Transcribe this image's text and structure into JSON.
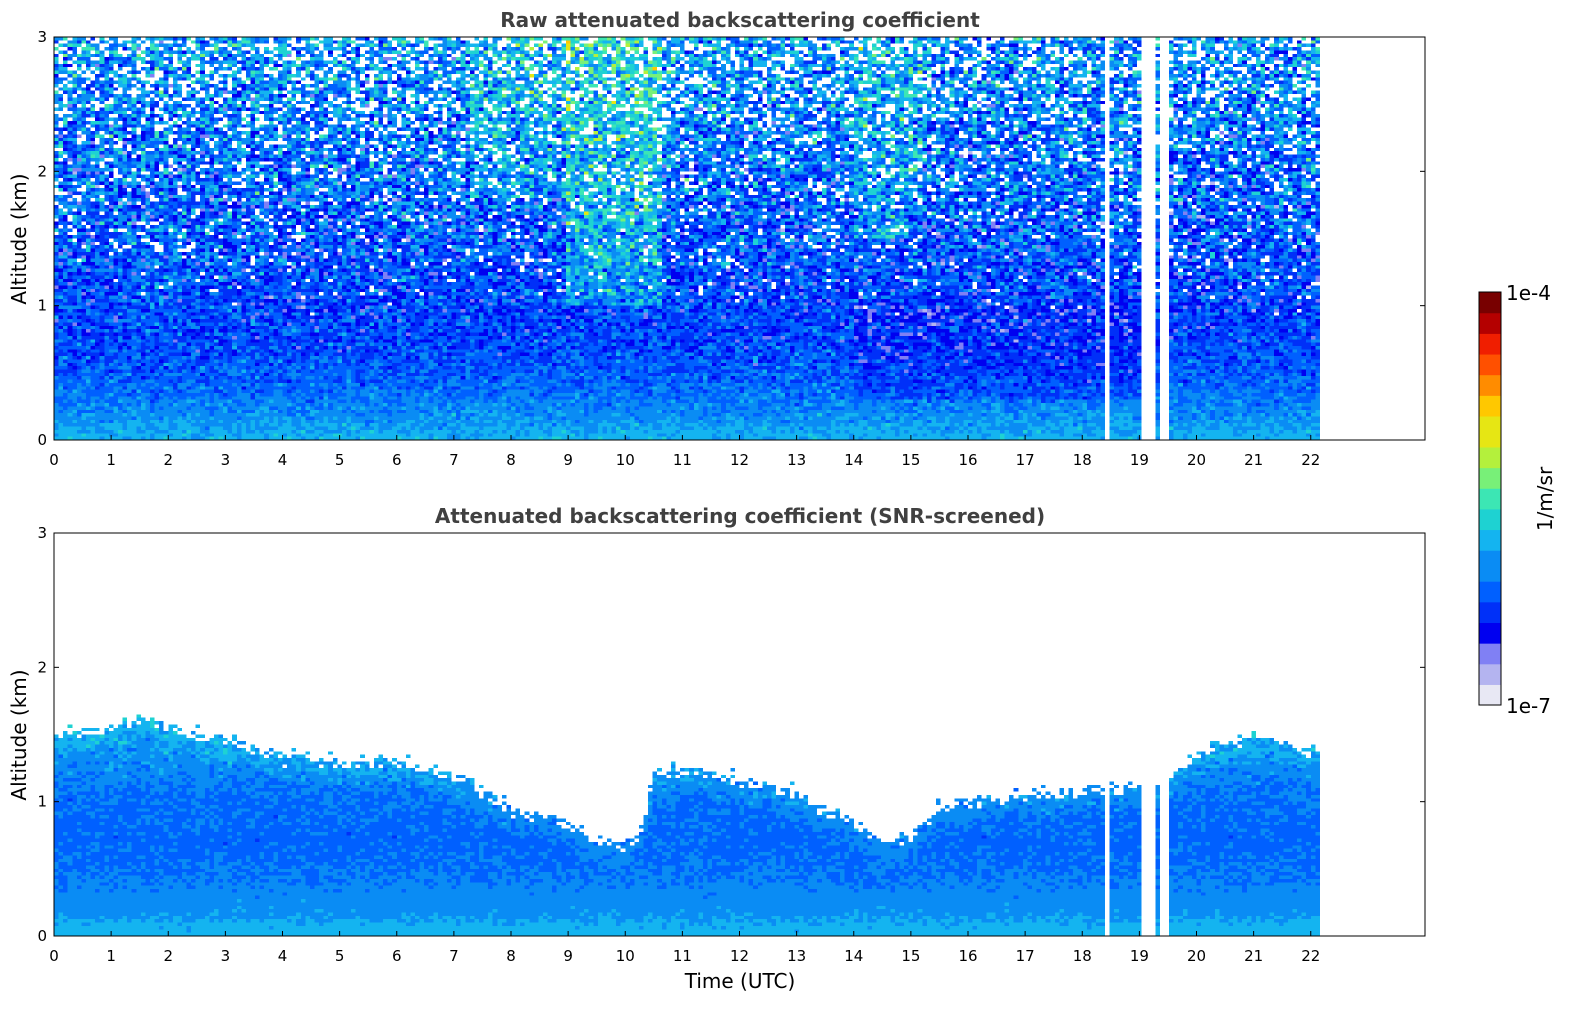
{
  "colors": {
    "background": "#ffffff",
    "axis": "#000000",
    "title": "#404040",
    "colormap": [
      "#e8e8f4",
      "#b4b4f0",
      "#8080f4",
      "#0000f0",
      "#0030f8",
      "#0060ff",
      "#0a8cf4",
      "#14b4f0",
      "#1ed2d2",
      "#3ce6b4",
      "#78f078",
      "#b4f03c",
      "#e6e614",
      "#ffc800",
      "#ff8c00",
      "#ff5000",
      "#f01e00",
      "#b40000",
      "#780000"
    ]
  },
  "chart_data": [
    {
      "type": "heatmap",
      "title": "Raw attenuated backscattering coefficient",
      "xlabel": "",
      "ylabel": "Altitude (km)",
      "xlim": [
        0,
        24
      ],
      "ylim": [
        0,
        3
      ],
      "xticks": [
        "0",
        "1",
        "2",
        "3",
        "4",
        "5",
        "6",
        "7",
        "8",
        "9",
        "10",
        "11",
        "12",
        "13",
        "14",
        "15",
        "16",
        "17",
        "18",
        "19",
        "20",
        "21",
        "22"
      ],
      "yticks": [
        "0",
        "1",
        "2",
        "3"
      ],
      "data_extent_hours": [
        0,
        22.2
      ],
      "gaps_hours": [
        [
          18.42,
          18.47
        ],
        [
          19.05,
          19.17
        ],
        [
          19.24,
          19.3
        ],
        [
          19.37,
          19.42
        ],
        [
          19.47,
          19.52
        ]
      ],
      "profile": {
        "note_levels": "colormap index 0-18 at altitude km",
        "altitude_km": [
          0.0,
          0.2,
          0.4,
          0.7,
          1.0,
          1.5,
          2.0,
          2.5,
          3.0
        ],
        "level": [
          7.0,
          6.0,
          5.2,
          4.5,
          4.3,
          4.8,
          5.3,
          5.8,
          6.2
        ]
      },
      "noise": 2.8,
      "features": [
        {
          "x_hours": [
            9.0,
            10.6
          ],
          "y_km": [
            1.0,
            3.0
          ],
          "boost": 2.8
        },
        {
          "x_hours": [
            7.3,
            9.0
          ],
          "y_km": [
            1.8,
            3.0
          ],
          "boost": 1.6
        },
        {
          "x_hours": [
            14.0,
            15.2
          ],
          "y_km": [
            1.5,
            3.0
          ],
          "boost": 1.4
        },
        {
          "x_hours": [
            14.0,
            19.0
          ],
          "y_km": [
            0.3,
            1.0
          ],
          "boost": -1.0
        },
        {
          "x_hours": [
            1.3,
            2.2
          ],
          "y_km": [
            0.8,
            1.6
          ],
          "boost": 0.8
        }
      ],
      "screened": false
    },
    {
      "type": "heatmap",
      "title": "Attenuated backscattering coefficient (SNR-screened)",
      "xlabel": "Time (UTC)",
      "ylabel": "Altitude (km)",
      "xlim": [
        0,
        24
      ],
      "ylim": [
        0,
        3
      ],
      "xticks": [
        "0",
        "1",
        "2",
        "3",
        "4",
        "5",
        "6",
        "7",
        "8",
        "9",
        "10",
        "11",
        "12",
        "13",
        "14",
        "15",
        "16",
        "17",
        "18",
        "19",
        "20",
        "21",
        "22"
      ],
      "yticks": [
        "0",
        "1",
        "2",
        "3"
      ],
      "data_extent_hours": [
        0,
        22.2
      ],
      "gaps_hours": [
        [
          18.42,
          18.47
        ],
        [
          19.05,
          19.17
        ],
        [
          19.24,
          19.3
        ],
        [
          19.37,
          19.42
        ],
        [
          19.47,
          19.52
        ]
      ],
      "profile": {
        "altitude_km": [
          0.0,
          0.2,
          0.4,
          0.7,
          1.0,
          1.3,
          1.6
        ],
        "level": [
          7.0,
          6.2,
          5.6,
          5.2,
          5.4,
          6.0,
          6.5
        ]
      },
      "noise": 0.9,
      "screened": true,
      "boundary_layer_top_km": {
        "x_hours": [
          0,
          1,
          1.6,
          2,
          3,
          3.6,
          4,
          5,
          6,
          7,
          7.5,
          8,
          9,
          9.5,
          10,
          10.3,
          10.5,
          11,
          12,
          13,
          14,
          14.5,
          15,
          15.5,
          16,
          17,
          18,
          19,
          19.5,
          20,
          21,
          22.2
        ],
        "y_km": [
          1.5,
          1.55,
          1.65,
          1.55,
          1.45,
          1.4,
          1.35,
          1.3,
          1.3,
          1.2,
          1.05,
          0.95,
          0.85,
          0.7,
          0.65,
          0.8,
          1.2,
          1.25,
          1.15,
          1.05,
          0.85,
          0.7,
          0.75,
          0.95,
          1.0,
          1.05,
          1.08,
          1.1,
          1.15,
          1.35,
          1.5,
          1.35
        ]
      }
    }
  ],
  "colorbar": {
    "label": "1/m/sr",
    "max_label": "1e-4",
    "min_label": "1e-7"
  }
}
